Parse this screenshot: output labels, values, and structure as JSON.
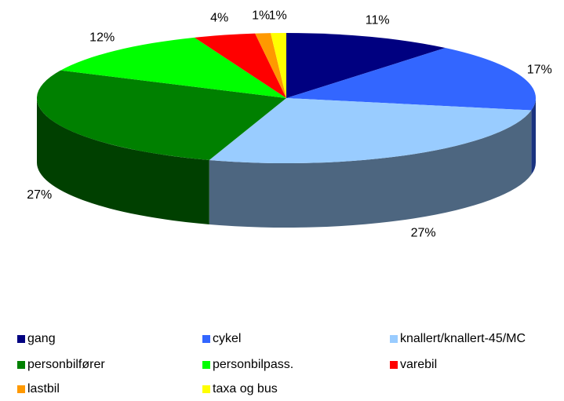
{
  "chart_data": {
    "type": "pie",
    "categories": [
      "gang",
      "cykel",
      "knallert/knallert-45/MC",
      "personbilfører",
      "personbilpass.",
      "varebil",
      "lastbil",
      "taxa og bus"
    ],
    "values": [
      11,
      17,
      27,
      27,
      12,
      4,
      1,
      1
    ],
    "value_labels": [
      "11%",
      "17%",
      "27%",
      "27%",
      "12%",
      "4%",
      "1%",
      "1%"
    ],
    "colors": [
      "#000080",
      "#3366ff",
      "#99ccff",
      "#008000",
      "#00ff00",
      "#ff0000",
      "#ff9900",
      "#ffff00"
    ],
    "legend": "bottom"
  }
}
